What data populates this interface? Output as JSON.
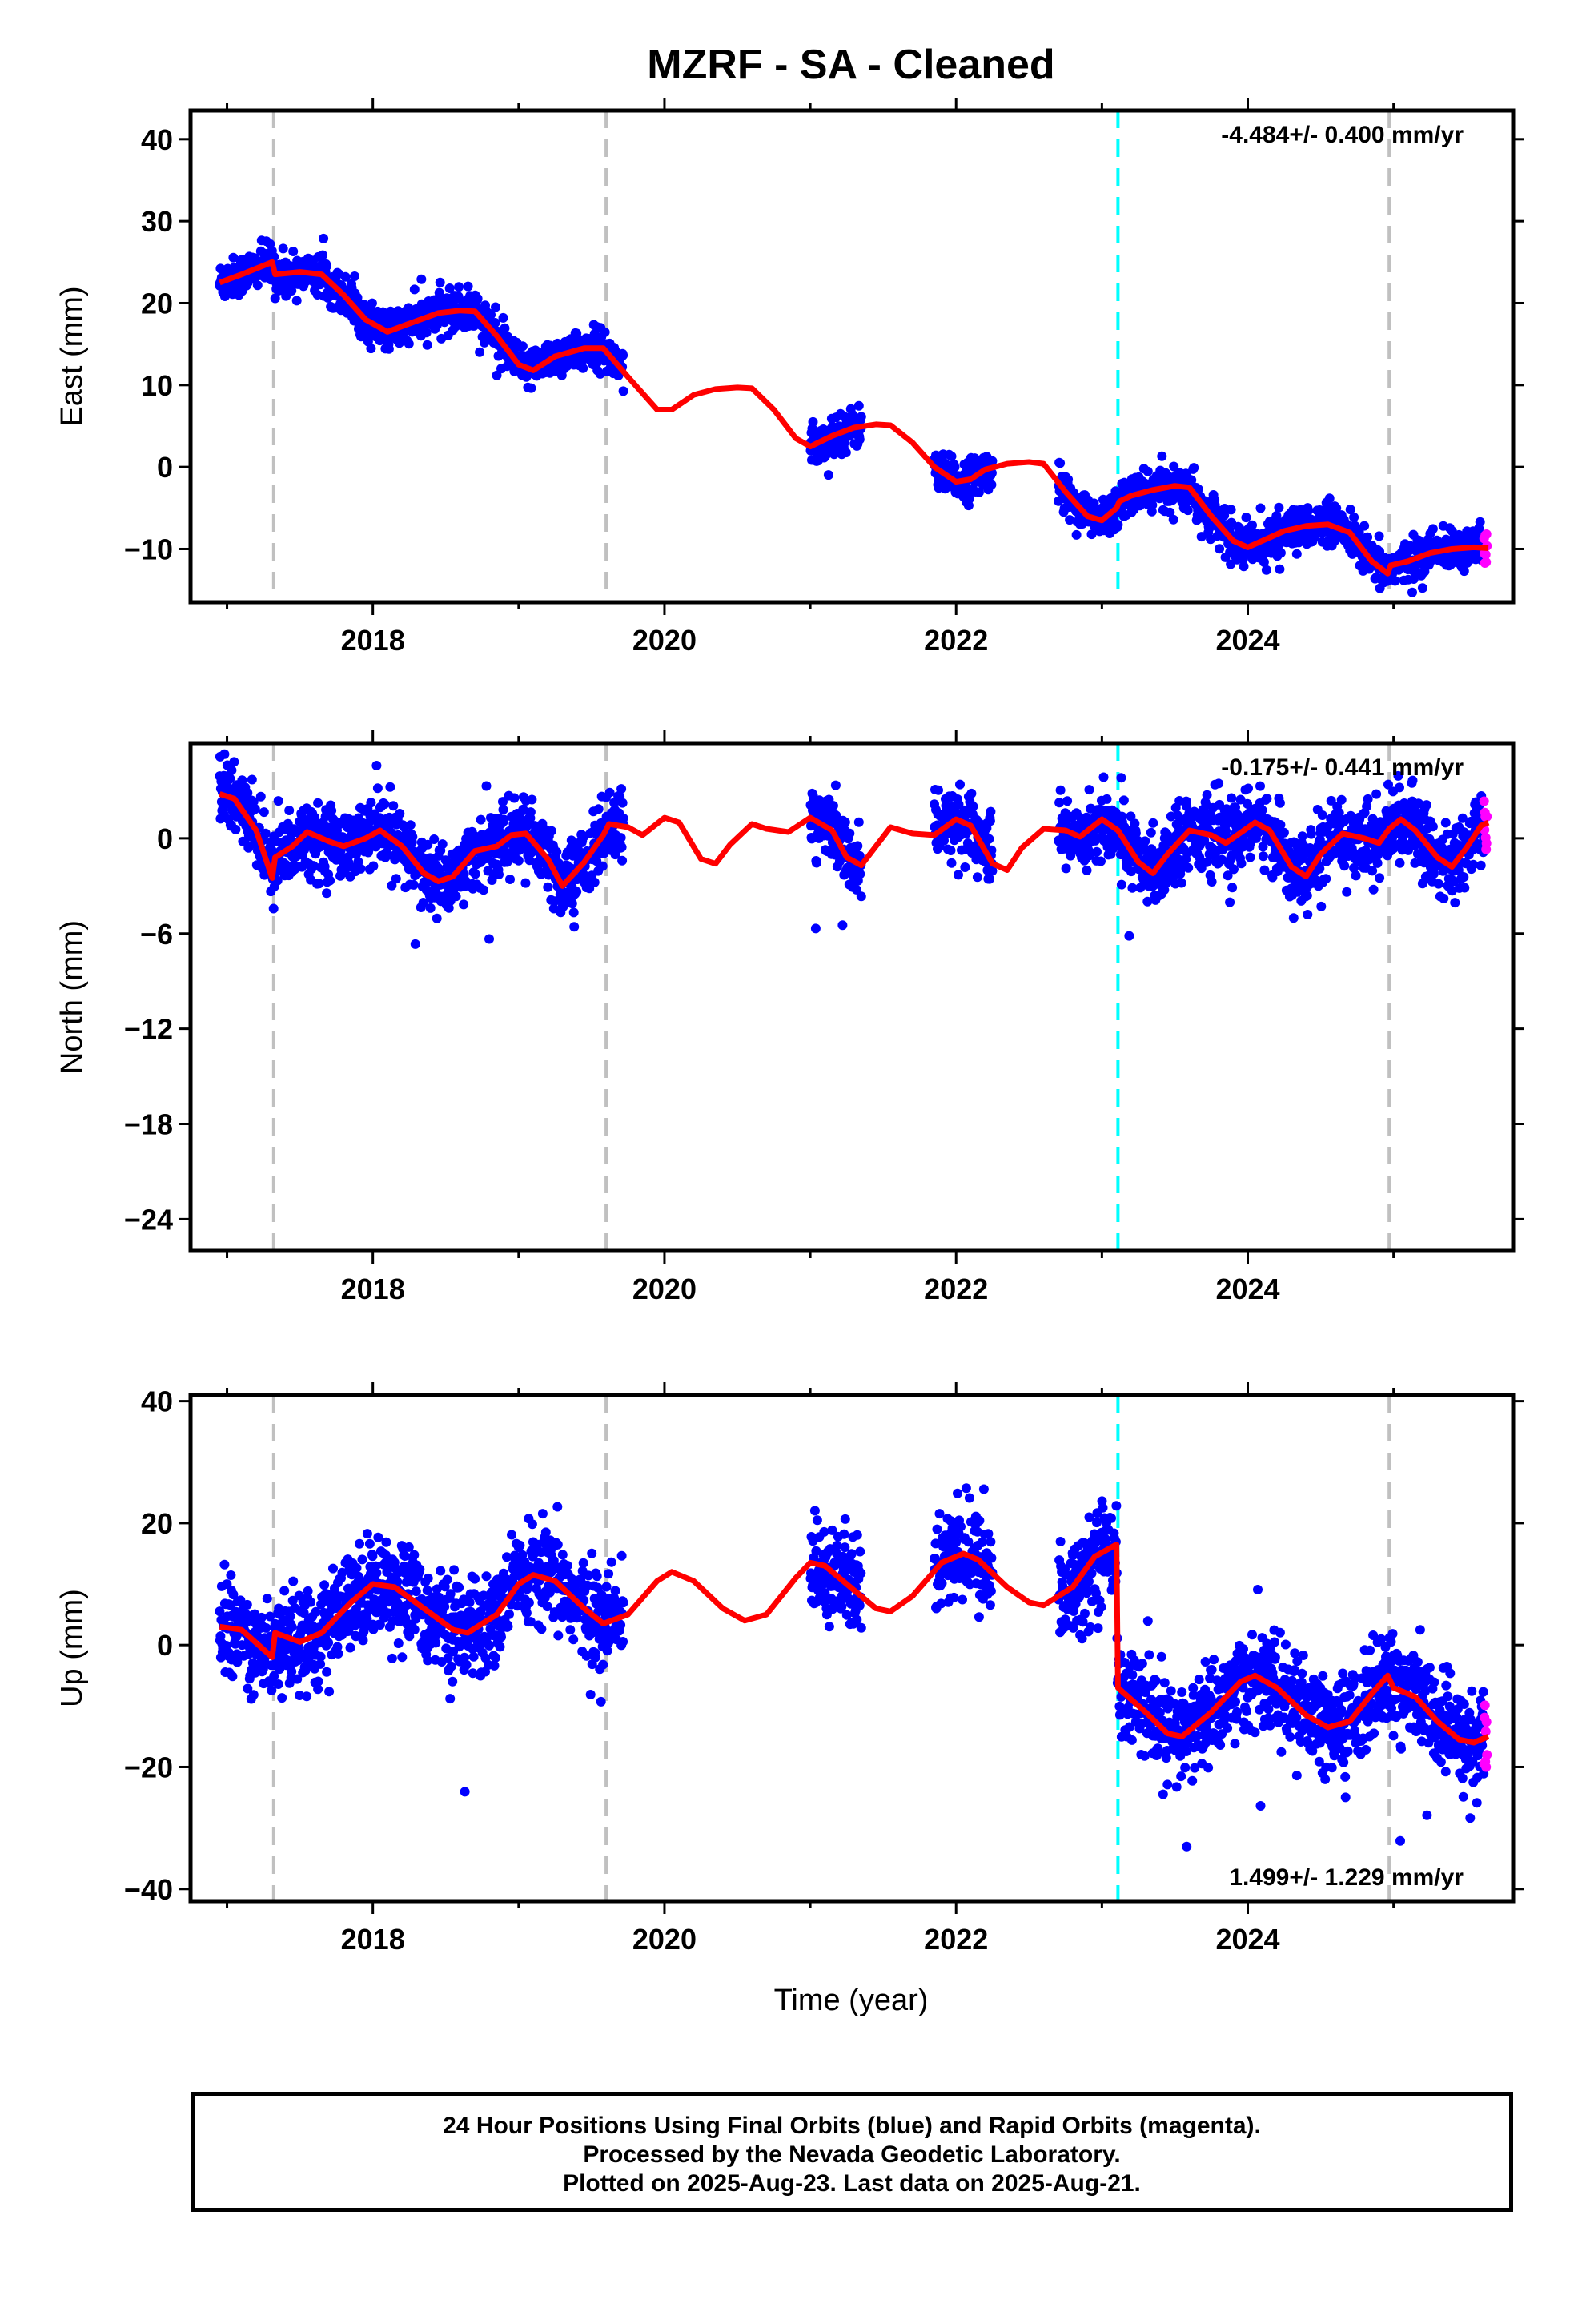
{
  "colors": {
    "final_orbits": "#0000ff",
    "rapid_orbits": "#ff00ff",
    "model": "#ff0000",
    "equipment_change": "#c0c0c0",
    "earthquake": "#00ffff"
  },
  "chart_data": {
    "type": "scatter",
    "title": "MZRF  - SA - Cleaned",
    "xlabel": "Time (year)",
    "xlim": [
      2016.75,
      2025.82
    ],
    "x_ticks": [
      2018,
      2020,
      2022,
      2024
    ],
    "x_tick_labels": [
      "2018",
      "2020",
      "2022",
      "2024"
    ],
    "equipment_change_years": [
      2017.32,
      2019.6,
      2024.97
    ],
    "earthquake_years": [
      2023.11
    ],
    "data_gaps": [
      [
        2019.72,
        2021.0
      ],
      [
        2021.35,
        2021.85
      ],
      [
        2022.25,
        2022.7
      ]
    ],
    "rapid_orbits_start": 2025.62,
    "last_data": 2025.64,
    "panels": [
      {
        "id": "east",
        "ylabel": "East (mm)",
        "ylim": [
          -16.5,
          43.5
        ],
        "y_ticks": [
          40,
          30,
          20,
          10,
          0,
          -10
        ],
        "y_tick_labels": [
          "40",
          "30",
          "20",
          "10",
          "0",
          "−10"
        ],
        "rate": "-4.484+/- 0.400 mm/yr",
        "rate_position": "top-right",
        "model_curve": [
          [
            2016.95,
            22.5
          ],
          [
            2017.1,
            23.5
          ],
          [
            2017.31,
            25
          ],
          [
            2017.33,
            23.5
          ],
          [
            2017.5,
            23.8
          ],
          [
            2017.65,
            23.5
          ],
          [
            2017.8,
            21
          ],
          [
            2017.95,
            18
          ],
          [
            2018.1,
            16.5
          ],
          [
            2018.25,
            17.5
          ],
          [
            2018.45,
            18.8
          ],
          [
            2018.6,
            19.1
          ],
          [
            2018.7,
            19
          ],
          [
            2018.85,
            16
          ],
          [
            2019.0,
            12.5
          ],
          [
            2019.1,
            11.8
          ],
          [
            2019.25,
            13.5
          ],
          [
            2019.45,
            14.5
          ],
          [
            2019.58,
            14.5
          ],
          [
            2019.75,
            11
          ],
          [
            2019.95,
            7
          ],
          [
            2020.05,
            7
          ],
          [
            2020.2,
            8.8
          ],
          [
            2020.35,
            9.5
          ],
          [
            2020.5,
            9.7
          ],
          [
            2020.6,
            9.6
          ],
          [
            2020.75,
            7
          ],
          [
            2020.9,
            3.5
          ],
          [
            2021.0,
            2.5
          ],
          [
            2021.15,
            3.8
          ],
          [
            2021.3,
            4.8
          ],
          [
            2021.45,
            5.2
          ],
          [
            2021.55,
            5.1
          ],
          [
            2021.7,
            3
          ],
          [
            2021.85,
            0
          ],
          [
            2022.0,
            -1.8
          ],
          [
            2022.1,
            -1.5
          ],
          [
            2022.2,
            -0.3
          ],
          [
            2022.35,
            0.4
          ],
          [
            2022.5,
            0.6
          ],
          [
            2022.6,
            0.4
          ],
          [
            2022.75,
            -3
          ],
          [
            2022.9,
            -6
          ],
          [
            2023.0,
            -6.5
          ],
          [
            2023.1,
            -5
          ],
          [
            2023.12,
            -4.2
          ],
          [
            2023.2,
            -3.5
          ],
          [
            2023.35,
            -2.8
          ],
          [
            2023.5,
            -2.3
          ],
          [
            2023.6,
            -2.5
          ],
          [
            2023.75,
            -6
          ],
          [
            2023.9,
            -9
          ],
          [
            2024.0,
            -9.8
          ],
          [
            2024.1,
            -9
          ],
          [
            2024.25,
            -7.8
          ],
          [
            2024.4,
            -7.2
          ],
          [
            2024.55,
            -7
          ],
          [
            2024.7,
            -8
          ],
          [
            2024.85,
            -11.5
          ],
          [
            2024.96,
            -13
          ],
          [
            2024.98,
            -12
          ],
          [
            2025.1,
            -11.5
          ],
          [
            2025.25,
            -10.5
          ],
          [
            2025.4,
            -10
          ],
          [
            2025.55,
            -9.8
          ],
          [
            2025.65,
            -9.9
          ]
        ]
      },
      {
        "id": "north",
        "ylabel": "North (mm)",
        "ylim": [
          -26.0,
          6.0
        ],
        "y_ticks": [
          0,
          -6,
          -12,
          -18,
          -24
        ],
        "y_tick_labels": [
          "0",
          "−6",
          "−12",
          "−18",
          "−24"
        ],
        "rate": "-0.175+/- 0.441 mm/yr",
        "rate_position": "top-right",
        "model_curve": [
          [
            2016.95,
            2.8
          ],
          [
            2017.05,
            2.5
          ],
          [
            2017.2,
            0.5
          ],
          [
            2017.31,
            -2.5
          ],
          [
            2017.33,
            -1.2
          ],
          [
            2017.45,
            -0.5
          ],
          [
            2017.55,
            0.4
          ],
          [
            2017.7,
            -0.2
          ],
          [
            2017.8,
            -0.5
          ],
          [
            2017.95,
            0
          ],
          [
            2018.05,
            0.5
          ],
          [
            2018.2,
            -0.5
          ],
          [
            2018.35,
            -2.2
          ],
          [
            2018.45,
            -2.7
          ],
          [
            2018.55,
            -2.4
          ],
          [
            2018.7,
            -0.8
          ],
          [
            2018.85,
            -0.5
          ],
          [
            2018.95,
            0.2
          ],
          [
            2019.05,
            0.3
          ],
          [
            2019.2,
            -1.3
          ],
          [
            2019.3,
            -3.0
          ],
          [
            2019.45,
            -1.5
          ],
          [
            2019.58,
            0.2
          ],
          [
            2019.62,
            0.9
          ],
          [
            2019.75,
            0.7
          ],
          [
            2019.85,
            0.2
          ],
          [
            2020.0,
            1.3
          ],
          [
            2020.1,
            1.0
          ],
          [
            2020.25,
            -1.3
          ],
          [
            2020.35,
            -1.6
          ],
          [
            2020.45,
            -0.4
          ],
          [
            2020.6,
            0.9
          ],
          [
            2020.7,
            0.6
          ],
          [
            2020.85,
            0.4
          ],
          [
            2021.0,
            1.3
          ],
          [
            2021.15,
            0.5
          ],
          [
            2021.25,
            -1.2
          ],
          [
            2021.35,
            -1.7
          ],
          [
            2021.45,
            -0.5
          ],
          [
            2021.55,
            0.7
          ],
          [
            2021.7,
            0.3
          ],
          [
            2021.85,
            0.2
          ],
          [
            2022.0,
            1.2
          ],
          [
            2022.1,
            0.8
          ],
          [
            2022.25,
            -1.6
          ],
          [
            2022.35,
            -2.0
          ],
          [
            2022.45,
            -0.6
          ],
          [
            2022.6,
            0.6
          ],
          [
            2022.75,
            0.5
          ],
          [
            2022.85,
            0.1
          ],
          [
            2023.0,
            1.2
          ],
          [
            2023.11,
            0.5
          ],
          [
            2023.25,
            -1.5
          ],
          [
            2023.35,
            -2.2
          ],
          [
            2023.45,
            -1.0
          ],
          [
            2023.6,
            0.5
          ],
          [
            2023.75,
            0.2
          ],
          [
            2023.85,
            -0.3
          ],
          [
            2024.05,
            1.0
          ],
          [
            2024.15,
            0.5
          ],
          [
            2024.3,
            -1.8
          ],
          [
            2024.4,
            -2.4
          ],
          [
            2024.5,
            -1.0
          ],
          [
            2024.65,
            0.3
          ],
          [
            2024.8,
            0.0
          ],
          [
            2024.9,
            -0.3
          ],
          [
            2024.97,
            0.6
          ],
          [
            2025.05,
            1.2
          ],
          [
            2025.15,
            0.5
          ],
          [
            2025.3,
            -1.2
          ],
          [
            2025.4,
            -1.8
          ],
          [
            2025.5,
            -0.6
          ],
          [
            2025.6,
            0.8
          ],
          [
            2025.65,
            1.0
          ]
        ]
      },
      {
        "id": "up",
        "ylabel": "Up (mm)",
        "ylim": [
          -42.0,
          41.0
        ],
        "y_ticks": [
          40,
          20,
          0,
          -20,
          -40
        ],
        "y_tick_labels": [
          "40",
          "20",
          "0",
          "−20",
          "−40"
        ],
        "rate": "1.499+/- 1.229 mm/yr",
        "rate_position": "bottom-right",
        "model_curve": [
          [
            2016.95,
            3
          ],
          [
            2017.1,
            2.5
          ],
          [
            2017.31,
            -2
          ],
          [
            2017.33,
            2
          ],
          [
            2017.5,
            0.5
          ],
          [
            2017.65,
            2
          ],
          [
            2017.85,
            7
          ],
          [
            2018.0,
            10
          ],
          [
            2018.15,
            9.5
          ],
          [
            2018.35,
            6
          ],
          [
            2018.55,
            2.5
          ],
          [
            2018.65,
            2
          ],
          [
            2018.85,
            5
          ],
          [
            2019.0,
            10
          ],
          [
            2019.1,
            11.5
          ],
          [
            2019.25,
            10.5
          ],
          [
            2019.45,
            6
          ],
          [
            2019.58,
            3.5
          ],
          [
            2019.75,
            5
          ],
          [
            2019.95,
            10.5
          ],
          [
            2020.05,
            12
          ],
          [
            2020.2,
            10.5
          ],
          [
            2020.4,
            6
          ],
          [
            2020.55,
            4
          ],
          [
            2020.7,
            5
          ],
          [
            2020.9,
            11
          ],
          [
            2021.0,
            13.5
          ],
          [
            2021.1,
            13
          ],
          [
            2021.3,
            9
          ],
          [
            2021.45,
            6
          ],
          [
            2021.55,
            5.5
          ],
          [
            2021.7,
            8
          ],
          [
            2021.9,
            13.5
          ],
          [
            2022.05,
            15
          ],
          [
            2022.15,
            14
          ],
          [
            2022.35,
            9.5
          ],
          [
            2022.5,
            7
          ],
          [
            2022.6,
            6.5
          ],
          [
            2022.8,
            9.5
          ],
          [
            2022.95,
            14.5
          ],
          [
            2023.1,
            16.5
          ],
          [
            2023.11,
            -7
          ],
          [
            2023.3,
            -11
          ],
          [
            2023.45,
            -14.5
          ],
          [
            2023.55,
            -15
          ],
          [
            2023.75,
            -11
          ],
          [
            2023.95,
            -6
          ],
          [
            2024.05,
            -5
          ],
          [
            2024.2,
            -7
          ],
          [
            2024.4,
            -11.5
          ],
          [
            2024.55,
            -13.5
          ],
          [
            2024.7,
            -12.5
          ],
          [
            2024.85,
            -8
          ],
          [
            2024.96,
            -5
          ],
          [
            2025.0,
            -7
          ],
          [
            2025.15,
            -8.5
          ],
          [
            2025.3,
            -12.5
          ],
          [
            2025.45,
            -15.5
          ],
          [
            2025.55,
            -16
          ],
          [
            2025.65,
            -15
          ]
        ]
      }
    ]
  },
  "footer": {
    "line1": "24 Hour Positions Using Final Orbits (blue) and Rapid Orbits (magenta).",
    "line2": "Processed by the Nevada Geodetic Laboratory.",
    "line3": "Plotted on 2025-Aug-23. Last data on 2025-Aug-21."
  }
}
